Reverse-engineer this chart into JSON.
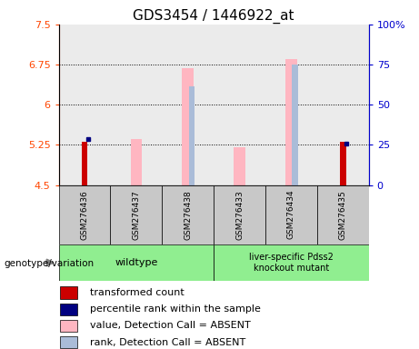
{
  "title": "GDS3454 / 1446922_at",
  "samples": [
    "GSM276436",
    "GSM276437",
    "GSM276438",
    "GSM276433",
    "GSM276434",
    "GSM276435"
  ],
  "ylim_left": [
    4.5,
    7.5
  ],
  "ylim_right": [
    0,
    100
  ],
  "yticks_left": [
    4.5,
    5.25,
    6.0,
    6.75,
    7.5
  ],
  "yticks_right": [
    0,
    25,
    50,
    75,
    100
  ],
  "ytick_labels_left": [
    "4.5",
    "5.25",
    "6",
    "6.75",
    "7.5"
  ],
  "ytick_labels_right": [
    "0",
    "25",
    "50",
    "75",
    "100%"
  ],
  "red_bars": {
    "GSM276436": 5.3,
    "GSM276435": 5.3
  },
  "blue_squares": {
    "GSM276436": 5.35,
    "GSM276435": 5.27
  },
  "pink_bars": {
    "GSM276437": 5.35,
    "GSM276438": 6.68,
    "GSM276433": 5.2,
    "GSM276434": 6.85
  },
  "lavender_bars": {
    "GSM276438": 6.35,
    "GSM276434": 6.75
  },
  "wildtype_samples": [
    0,
    1,
    2
  ],
  "ko_samples": [
    3,
    4,
    5
  ],
  "wildtype_label": "wildtype",
  "ko_label": "liver-specific Pdss2\nknockout mutant",
  "genotype_label": "genotype/variation",
  "green_color": "#90EE90",
  "gray_color": "#C8C8C8",
  "pink_color": "#FFB6C1",
  "lavender_color": "#AABCD8",
  "red_color": "#CC0000",
  "darkred_color": "#8B0000",
  "blue_color": "#000080",
  "left_tick_color": "#FF4500",
  "right_tick_color": "#0000CD",
  "legend_items": [
    {
      "label": "transformed count",
      "color": "#CC0000"
    },
    {
      "label": "percentile rank within the sample",
      "color": "#000080"
    },
    {
      "label": "value, Detection Call = ABSENT",
      "color": "#FFB6C1"
    },
    {
      "label": "rank, Detection Call = ABSENT",
      "color": "#AABCD8"
    }
  ],
  "title_fontsize": 11,
  "tick_fontsize": 8,
  "legend_fontsize": 8
}
